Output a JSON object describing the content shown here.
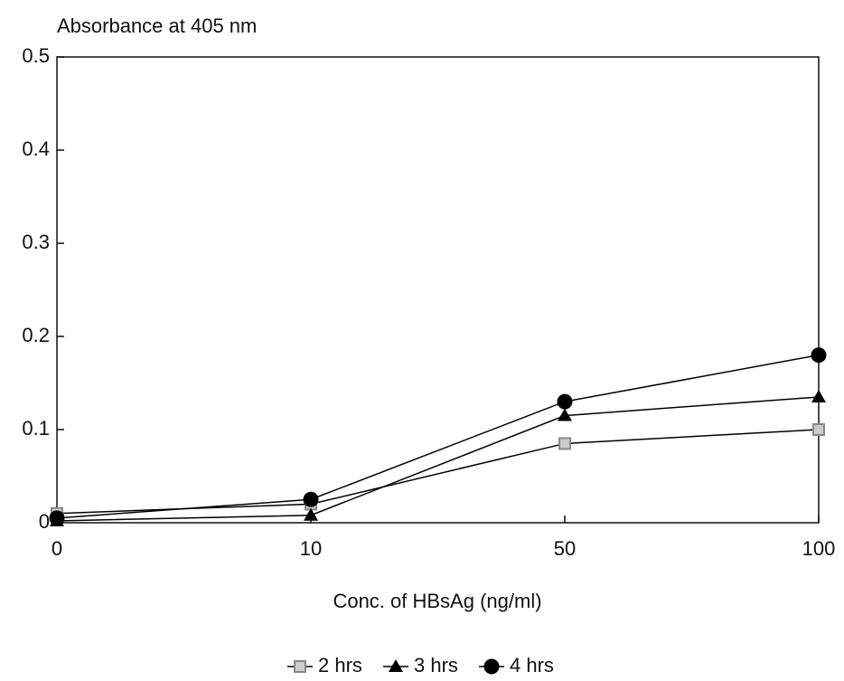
{
  "chart_data": {
    "type": "line",
    "title": "Absorbance at 405 nm",
    "x_label": "Conc. of HBsAg (ng/ml)",
    "categories": [
      "0",
      "10",
      "50",
      "100"
    ],
    "ylim": [
      0,
      0.5
    ],
    "yticks": [
      0,
      0.1,
      0.2,
      0.3,
      0.4,
      0.5
    ],
    "grid": false,
    "legend": "bottom",
    "line_color": "#000000",
    "series": [
      {
        "name": "2 hrs",
        "color": "#888888",
        "marker": "square",
        "values": [
          0.01,
          0.02,
          0.085,
          0.1
        ]
      },
      {
        "name": "3 hrs",
        "color": "#000000",
        "marker": "triangle",
        "values": [
          0.002,
          0.008,
          0.115,
          0.135
        ]
      },
      {
        "name": "4 hrs",
        "color": "#000000",
        "marker": "circle",
        "values": [
          0.005,
          0.025,
          0.13,
          0.18
        ]
      }
    ]
  }
}
